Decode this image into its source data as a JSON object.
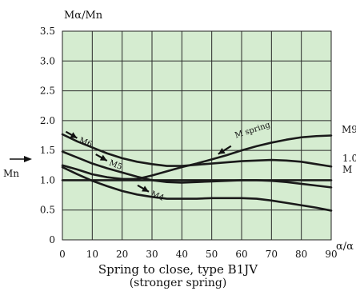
{
  "chart_data": {
    "type": "line",
    "title": "",
    "xlabel": "α/α",
    "ylabel": "Mα/Mn",
    "xlim": [
      0,
      90
    ],
    "ylim": [
      0,
      3.5
    ],
    "xticks": [
      0,
      10,
      20,
      30,
      40,
      50,
      60,
      70,
      80,
      90
    ],
    "yticks": [
      0,
      0.5,
      1.0,
      1.5,
      2.0,
      2.5,
      3.0,
      3.5
    ],
    "ytick_labels": [
      "0",
      "0.5",
      "1.0",
      "1.5",
      "2.0",
      "2.5",
      "3.0",
      "3.5"
    ],
    "grid": true,
    "plot_background": "#d5ecd0",
    "line_color": "#1a1a1a",
    "right_labels": {
      "m90": "M90",
      "ratio": "1.0",
      "mn_short": "M"
    },
    "left_marker_label": "Mn",
    "series": [
      {
        "name": "M6",
        "x": [
          0,
          5,
          10,
          15,
          20,
          25,
          30,
          35,
          40,
          45,
          50,
          55,
          60,
          65,
          70,
          75,
          80,
          85,
          90
        ],
        "values": [
          1.77,
          1.65,
          1.55,
          1.45,
          1.37,
          1.31,
          1.27,
          1.24,
          1.24,
          1.26,
          1.28,
          1.3,
          1.32,
          1.33,
          1.34,
          1.33,
          1.31,
          1.27,
          1.23
        ]
      },
      {
        "name": "M5",
        "x": [
          0,
          5,
          10,
          15,
          20,
          25,
          30,
          35,
          40,
          45,
          50,
          55,
          60,
          65,
          70,
          75,
          80,
          85,
          90
        ],
        "values": [
          1.48,
          1.38,
          1.28,
          1.2,
          1.13,
          1.06,
          1.0,
          0.97,
          0.96,
          0.97,
          0.98,
          0.99,
          1.0,
          1.0,
          0.99,
          0.97,
          0.94,
          0.91,
          0.88
        ]
      },
      {
        "name": "M4",
        "x": [
          0,
          5,
          10,
          15,
          20,
          25,
          30,
          35,
          40,
          45,
          50,
          55,
          60,
          65,
          70,
          75,
          80,
          85,
          90
        ],
        "values": [
          1.22,
          1.1,
          0.99,
          0.9,
          0.82,
          0.76,
          0.72,
          0.69,
          0.69,
          0.69,
          0.7,
          0.7,
          0.7,
          0.69,
          0.66,
          0.62,
          0.58,
          0.54,
          0.49
        ]
      },
      {
        "name": "M spring",
        "x": [
          0,
          5,
          10,
          15,
          20,
          25,
          30,
          35,
          40,
          45,
          50,
          55,
          60,
          65,
          70,
          75,
          80,
          85,
          90
        ],
        "values": [
          1.25,
          1.18,
          1.1,
          1.05,
          1.02,
          1.02,
          1.08,
          1.15,
          1.22,
          1.28,
          1.35,
          1.42,
          1.5,
          1.57,
          1.63,
          1.68,
          1.72,
          1.74,
          1.75
        ]
      },
      {
        "name": "Mn",
        "x": [
          0,
          90
        ],
        "values": [
          1.0,
          1.0
        ]
      }
    ],
    "annotations": [
      {
        "text": "M6",
        "series": "M6",
        "x": 6,
        "y": 1.68
      },
      {
        "text": "M5",
        "series": "M5",
        "x": 16,
        "y": 1.3
      },
      {
        "text": "M4",
        "series": "M4",
        "x": 30,
        "y": 0.78
      },
      {
        "text": "M spring",
        "series": "M spring",
        "x": 57,
        "y": 1.6
      }
    ]
  },
  "caption": {
    "line1": "Spring to close, type B1JV",
    "line2": "(stronger spring)"
  }
}
